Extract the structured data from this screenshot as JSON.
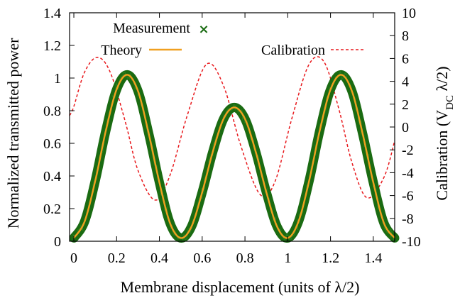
{
  "chart_data": {
    "type": "line",
    "xlabel": "Membrane displacement (units of λ/2)",
    "ylabel_left": "Normalized transmitted power",
    "ylabel_right_prefix": "Calibration (V",
    "ylabel_right_sub": "DC",
    "ylabel_right_suffix": " λ/2)",
    "xlim": [
      -0.02,
      1.5
    ],
    "ylim_left": [
      0,
      1.4
    ],
    "ylim_right": [
      -10,
      10
    ],
    "x_ticks": [
      "0",
      "0.2",
      "0.4",
      "0.6",
      "0.8",
      "1",
      "1.2",
      "1.4"
    ],
    "x_tick_values": [
      0,
      0.2,
      0.4,
      0.6,
      0.8,
      1.0,
      1.2,
      1.4
    ],
    "y_left_ticks": [
      "0",
      "0.2",
      "0.4",
      "0.6",
      "0.8",
      "1",
      "1.2",
      "1.4"
    ],
    "y_left_tick_values": [
      0,
      0.2,
      0.4,
      0.6,
      0.8,
      1.0,
      1.2,
      1.4
    ],
    "y_right_ticks": [
      "-10",
      "-8",
      "-6",
      "-4",
      "-2",
      "0",
      "2",
      "4",
      "6",
      "8",
      "10"
    ],
    "y_right_tick_values": [
      -10,
      -8,
      -6,
      -4,
      -2,
      0,
      2,
      4,
      6,
      8,
      10
    ],
    "legend": [
      {
        "name": "Measurement",
        "symbol": "×",
        "color": "#1a6b12"
      },
      {
        "name": "Theory",
        "color": "#f0a020"
      },
      {
        "name": "Calibration",
        "color": "#e8191d"
      }
    ],
    "series": [
      {
        "name": "Measurement",
        "axis": "left",
        "color": "#1a6b12",
        "x": [
          0,
          0.05,
          0.1,
          0.15,
          0.2,
          0.25,
          0.3,
          0.35,
          0.4,
          0.45,
          0.5,
          0.55,
          0.6,
          0.65,
          0.7,
          0.75,
          0.8,
          0.85,
          0.9,
          0.95,
          1.0,
          1.05,
          1.1,
          1.15,
          1.2,
          1.25,
          1.3,
          1.35,
          1.4,
          1.45,
          1.5
        ],
        "y": [
          0.02,
          0.12,
          0.37,
          0.68,
          0.93,
          1.02,
          0.92,
          0.66,
          0.36,
          0.11,
          0.02,
          0.09,
          0.3,
          0.55,
          0.75,
          0.82,
          0.75,
          0.55,
          0.3,
          0.09,
          0.02,
          0.12,
          0.37,
          0.68,
          0.93,
          1.02,
          0.92,
          0.66,
          0.36,
          0.11,
          0.02
        ]
      },
      {
        "name": "Theory",
        "axis": "left",
        "color": "#f0a020",
        "x": [
          0,
          0.05,
          0.1,
          0.15,
          0.2,
          0.25,
          0.3,
          0.35,
          0.4,
          0.45,
          0.5,
          0.55,
          0.6,
          0.65,
          0.7,
          0.75,
          0.8,
          0.85,
          0.9,
          0.95,
          1.0,
          1.05,
          1.1,
          1.15,
          1.2,
          1.25,
          1.3,
          1.35,
          1.4,
          1.45,
          1.5
        ],
        "y": [
          0.02,
          0.12,
          0.37,
          0.68,
          0.93,
          1.02,
          0.92,
          0.66,
          0.36,
          0.11,
          0.02,
          0.09,
          0.3,
          0.55,
          0.75,
          0.82,
          0.75,
          0.55,
          0.3,
          0.09,
          0.02,
          0.12,
          0.37,
          0.68,
          0.93,
          1.02,
          0.92,
          0.66,
          0.36,
          0.11,
          0.02
        ]
      },
      {
        "name": "Calibration",
        "axis": "right",
        "color": "#e8191d",
        "x": [
          -0.02,
          0.0,
          0.05,
          0.11,
          0.17,
          0.24,
          0.3,
          0.38,
          0.45,
          0.53,
          0.62,
          0.7,
          0.78,
          0.87,
          0.94,
          1.02,
          1.1,
          1.17,
          1.24,
          1.3,
          1.37,
          1.45,
          1.5
        ],
        "y": [
          1.0,
          1.8,
          4.8,
          6.1,
          4.8,
          0.5,
          -3.8,
          -6.4,
          -4.2,
          1.0,
          5.5,
          3.6,
          -1.6,
          -5.9,
          -4.8,
          0.8,
          5.5,
          5.7,
          1.5,
          -3.1,
          -6.2,
          -4.4,
          -1.2
        ]
      }
    ]
  }
}
